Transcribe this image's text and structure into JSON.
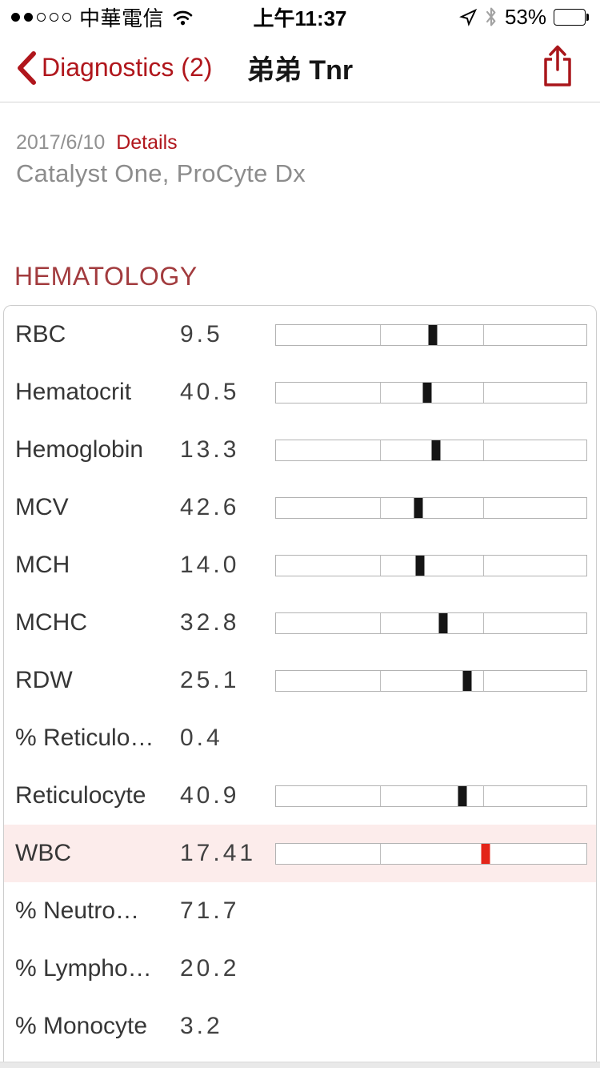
{
  "status_bar": {
    "carrier": "中華電信",
    "time": "上午11:37",
    "battery_text": "53%",
    "battery_level": 0.53,
    "signal_filled_dots": 2,
    "signal_total_dots": 5
  },
  "nav": {
    "back_label": "Diagnostics (2)",
    "title": "弟弟 Tnr"
  },
  "report": {
    "date": "2017/6/10",
    "details_label": "Details",
    "analyzers": "Catalyst One, ProCyte Dx"
  },
  "section": {
    "title": "HEMATOLOGY"
  },
  "colors": {
    "accent_red": "#b0161c",
    "section_red": "#a23b3e",
    "abnormal_marker_red": "#e32519",
    "abnormal_row_bg": "#fceceb"
  },
  "table": {
    "bar_dividers": [
      0.336,
      0.667
    ],
    "rows": [
      {
        "label": "RBC",
        "value": "9.5",
        "has_bar": true,
        "marker": 0.505,
        "flag": "normal"
      },
      {
        "label": "Hematocrit",
        "value": "40.5",
        "has_bar": true,
        "marker": 0.486,
        "flag": "normal"
      },
      {
        "label": "Hemoglobin",
        "value": "13.3",
        "has_bar": true,
        "marker": 0.515,
        "flag": "normal"
      },
      {
        "label": "MCV",
        "value": "42.6",
        "has_bar": true,
        "marker": 0.46,
        "flag": "normal"
      },
      {
        "label": "MCH",
        "value": "14.0",
        "has_bar": true,
        "marker": 0.465,
        "flag": "normal"
      },
      {
        "label": "MCHC",
        "value": "32.8",
        "has_bar": true,
        "marker": 0.538,
        "flag": "normal"
      },
      {
        "label": "RDW",
        "value": "25.1",
        "has_bar": true,
        "marker": 0.615,
        "flag": "normal"
      },
      {
        "label": "% Reticulo…",
        "value": "0.4",
        "has_bar": false,
        "marker": null,
        "flag": "normal"
      },
      {
        "label": "Reticulocyte",
        "value": "40.9",
        "has_bar": true,
        "marker": 0.6,
        "flag": "normal"
      },
      {
        "label": "WBC",
        "value": "17.41",
        "has_bar": true,
        "marker": 0.674,
        "flag": "high"
      },
      {
        "label": "% Neutro…",
        "value": "71.7",
        "has_bar": false,
        "marker": null,
        "flag": "normal"
      },
      {
        "label": "% Lympho…",
        "value": "20.2",
        "has_bar": false,
        "marker": null,
        "flag": "normal"
      },
      {
        "label": "% Monocyte",
        "value": "3.2",
        "has_bar": false,
        "marker": null,
        "flag": "normal"
      }
    ]
  }
}
